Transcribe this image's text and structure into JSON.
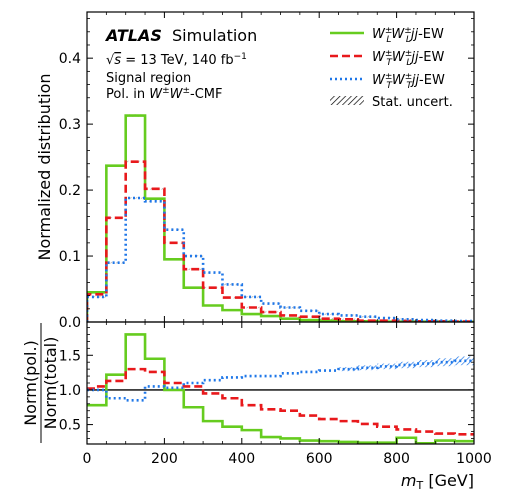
{
  "chart_data": {
    "type": "line",
    "step": true,
    "x_edges": [
      0,
      50,
      100,
      150,
      200,
      250,
      300,
      350,
      400,
      450,
      500,
      550,
      600,
      650,
      700,
      750,
      800,
      850,
      900,
      950,
      1000
    ],
    "ratio_x_edges": [
      0,
      25,
      50,
      100,
      150,
      200,
      250,
      300,
      350,
      400,
      450,
      500,
      550,
      600,
      650,
      700,
      750,
      800,
      850,
      900,
      950,
      1000
    ],
    "xlabel": "m_T [GeV]",
    "xlim": [
      0,
      1000
    ],
    "xticks": [
      "0",
      "200",
      "400",
      "600",
      "800",
      "1000"
    ],
    "xtick_values": [
      0,
      200,
      400,
      600,
      800,
      1000
    ],
    "top": {
      "ylabel": "Normalized distribution",
      "ylim": [
        0,
        0.47
      ],
      "yticks": [
        "0.0",
        "0.1",
        "0.2",
        "0.3",
        "0.4"
      ],
      "ytick_values": [
        0.0,
        0.1,
        0.2,
        0.3,
        0.4
      ],
      "series": [
        {
          "name": "W_L W_L jj-EW",
          "color": "#66cc1f",
          "dash": "solid",
          "values": [
            0.045,
            0.237,
            0.313,
            0.187,
            0.095,
            0.052,
            0.025,
            0.018,
            0.012,
            0.009,
            0.005,
            0.003,
            0.002,
            0.001,
            0.001,
            0.0005,
            0.0005,
            0.0005,
            0.0003,
            0.0002
          ]
        },
        {
          "name": "W_T W_L jj-EW",
          "color": "#e8191c",
          "dash": "dashed",
          "values": [
            0.042,
            0.158,
            0.243,
            0.202,
            0.12,
            0.08,
            0.052,
            0.037,
            0.022,
            0.015,
            0.01,
            0.008,
            0.005,
            0.004,
            0.002,
            0.002,
            0.0015,
            0.001,
            0.0008,
            0.0006
          ]
        },
        {
          "name": "W_T W_T jj-EW",
          "color": "#1f77e8",
          "dash": "dotted",
          "values": [
            0.038,
            0.09,
            0.188,
            0.183,
            0.14,
            0.1,
            0.075,
            0.057,
            0.038,
            0.028,
            0.022,
            0.017,
            0.012,
            0.01,
            0.008,
            0.006,
            0.004,
            0.003,
            0.002,
            0.0015
          ]
        }
      ]
    },
    "bottom": {
      "ylabel_num": "Norm(pol.)",
      "ylabel_den": "Norm(total)",
      "ylim": [
        0.22,
        1.98
      ],
      "yticks": [
        "0.5",
        "1.0",
        "1.5"
      ],
      "ytick_values": [
        0.5,
        1.0,
        1.5
      ],
      "reference": 1.0,
      "series": [
        {
          "name": "W_L W_L jj-EW",
          "color": "#66cc1f",
          "dash": "solid",
          "values": [
            0.78,
            0.78,
            1.22,
            1.8,
            1.45,
            1.0,
            0.75,
            0.55,
            0.47,
            0.42,
            0.32,
            0.3,
            0.27,
            0.26,
            0.25,
            0.24,
            0.24,
            0.31,
            0.23,
            0.27,
            0.26
          ]
        },
        {
          "name": "W_T W_L jj-EW",
          "color": "#e8191c",
          "dash": "dashed",
          "values": [
            1.02,
            1.05,
            1.13,
            1.3,
            1.26,
            1.1,
            1.05,
            0.95,
            0.88,
            0.78,
            0.72,
            0.7,
            0.63,
            0.58,
            0.55,
            0.51,
            0.47,
            0.43,
            0.4,
            0.37,
            0.36
          ]
        },
        {
          "name": "W_T W_T jj-EW",
          "color": "#1f77e8",
          "dash": "dotted",
          "values": [
            1.0,
            1.0,
            0.88,
            0.85,
            1.05,
            1.03,
            1.1,
            1.14,
            1.18,
            1.2,
            1.2,
            1.24,
            1.26,
            1.28,
            1.3,
            1.32,
            1.34,
            1.36,
            1.38,
            1.4,
            1.42
          ]
        }
      ]
    },
    "legend": {
      "placement": "top-right",
      "stat_label": "Stat. uncert."
    },
    "annotations": {
      "experiment": "ATLAS",
      "status": "Simulation",
      "energy_lumi": "√s = 13 TeV, 140 fb⁻¹",
      "region": "Signal region",
      "frame": "Pol. in W±W±-CMF"
    }
  }
}
